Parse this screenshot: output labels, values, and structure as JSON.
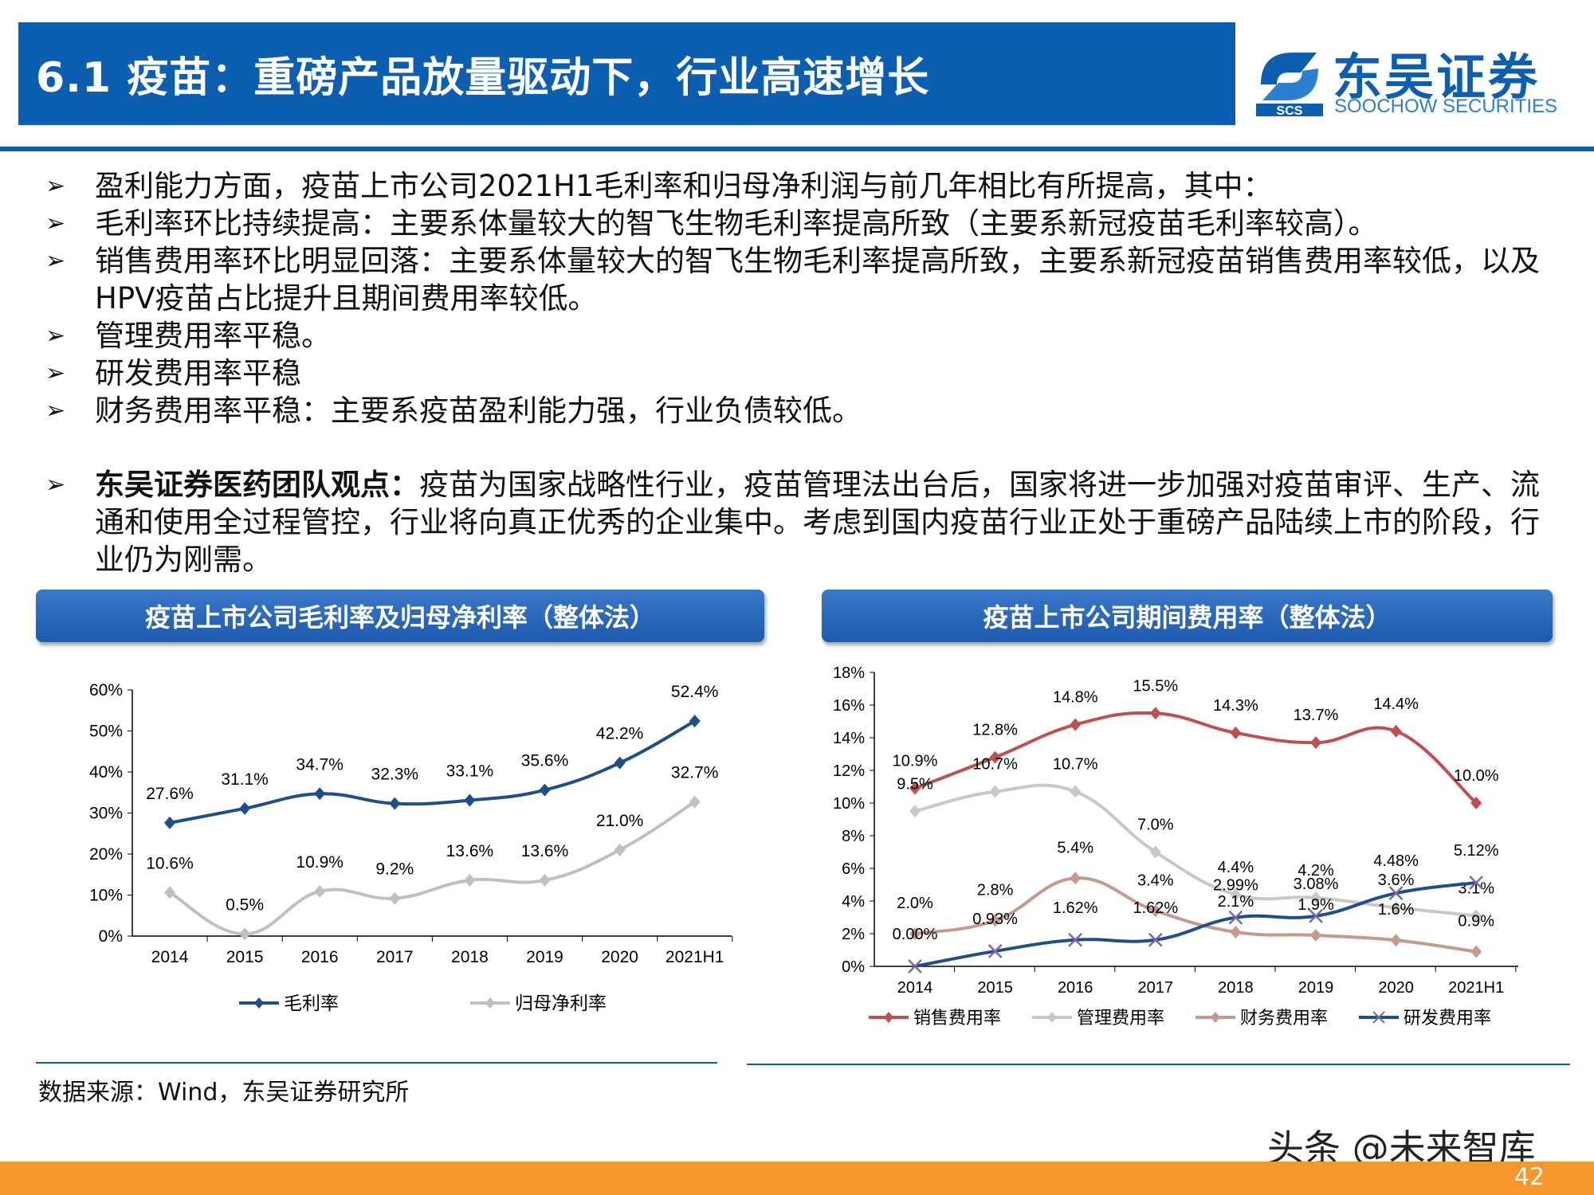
{
  "header": {
    "title": "6.1 疫苗：重磅产品放量驱动下，行业高速增长",
    "logo_cn": "东吴证券",
    "logo_en": "SOOCHOW SECURITIES",
    "logo_mark": "SCS"
  },
  "bullets": [
    "盈利能力方面，疫苗上市公司2021H1毛利率和归母净利润与前几年相比有所提高，其中：",
    "毛利率环比持续提高：主要系体量较大的智飞生物毛利率提高所致（主要系新冠疫苗毛利率较高）。",
    "销售费用率环比明显回落：主要系体量较大的智飞生物毛利率提高所致，主要系新冠疫苗销售费用率较低，以及HPV疫苗占比提升且期间费用率较低。",
    "管理费用率平稳。",
    "研发费用率平稳",
    "财务费用率平稳：主要系疫苗盈利能力强，行业负债较低。"
  ],
  "viewpoint": {
    "label": "东吴证券医药团队观点：",
    "text": "疫苗为国家战略性行业，疫苗管理法出台后，国家将进一步加强对疫苗审评、生产、流通和使用全过程管控，行业将向真正优秀的企业集中。考虑到国内疫苗行业正处于重磅产品陆续上市的阶段，行业仍为刚需。"
  },
  "bullet_glyph": "➢",
  "chart_data": [
    {
      "type": "line",
      "title": "疫苗上市公司毛利率及归母净利率（整体法）",
      "categories": [
        "2014",
        "2015",
        "2016",
        "2017",
        "2018",
        "2019",
        "2020",
        "2021H1"
      ],
      "ylim": [
        0,
        60
      ],
      "yticks": [
        "0%",
        "10%",
        "20%",
        "30%",
        "40%",
        "50%",
        "60%"
      ],
      "legend": "bottom",
      "series": [
        {
          "name": "毛利率",
          "color": "#1f4e8c",
          "marker": "diamond",
          "values": [
            27.6,
            31.1,
            34.7,
            32.3,
            33.1,
            35.6,
            42.2,
            52.4
          ],
          "labels": [
            "27.6%",
            "31.1%",
            "34.7%",
            "32.3%",
            "33.1%",
            "35.6%",
            "42.2%",
            "52.4%"
          ]
        },
        {
          "name": "归母净利率",
          "color": "#c0c0c0",
          "marker": "diamond",
          "values": [
            10.6,
            0.5,
            10.9,
            9.2,
            13.6,
            13.6,
            21.0,
            32.7
          ],
          "labels": [
            "10.6%",
            "0.5%",
            "10.9%",
            "9.2%",
            "13.6%",
            "13.6%",
            "21.0%",
            "32.7%"
          ]
        }
      ]
    },
    {
      "type": "line",
      "title": "疫苗上市公司期间费用率（整体法）",
      "categories": [
        "2014",
        "2015",
        "2016",
        "2017",
        "2018",
        "2019",
        "2020",
        "2021H1"
      ],
      "ylim": [
        0,
        18
      ],
      "yticks": [
        "0%",
        "2%",
        "4%",
        "6%",
        "8%",
        "10%",
        "12%",
        "14%",
        "16%",
        "18%"
      ],
      "legend": "bottom",
      "series": [
        {
          "name": "销售费用率",
          "color": "#c0504d",
          "marker": "diamond",
          "values": [
            10.9,
            12.8,
            14.8,
            15.5,
            14.3,
            13.7,
            14.4,
            10.0
          ],
          "labels": [
            "10.9%",
            "12.8%",
            "14.8%",
            "15.5%",
            "14.3%",
            "13.7%",
            "14.4%",
            "10.0%"
          ]
        },
        {
          "name": "管理费用率",
          "color": "#c8c8c8",
          "marker": "diamond",
          "values": [
            9.5,
            10.7,
            10.7,
            7.0,
            4.4,
            4.2,
            3.6,
            3.1
          ],
          "labels": [
            "9.5%",
            "10.7%",
            "10.7%",
            "7.0%",
            "4.4%",
            "4.2%",
            "3.6%",
            "3.1%"
          ]
        },
        {
          "name": "财务费用率",
          "color": "#c49a8f",
          "marker": "diamond",
          "values": [
            2.0,
            2.8,
            5.4,
            3.4,
            2.1,
            1.9,
            1.6,
            0.9
          ],
          "labels": [
            "2.0%",
            "2.8%",
            "5.4%",
            "3.4%",
            "2.1%",
            "1.9%",
            "1.6%",
            "0.9%"
          ]
        },
        {
          "name": "研发费用率",
          "color": "#1f4e8c",
          "marker": "x",
          "values": [
            0.0,
            0.93,
            1.62,
            1.62,
            2.99,
            3.08,
            4.48,
            5.12
          ],
          "labels": [
            "0.00%",
            "0.93%",
            "1.62%",
            "1.62%",
            "2.99%",
            "3.08%",
            "4.48%",
            "5.12%"
          ]
        }
      ]
    }
  ],
  "source": "数据来源：Wind，东吴证券研究所",
  "watermark": "头条 @未来智库",
  "page_number": "42",
  "colors": {
    "brand": "#0b5eb0",
    "footer": "#f7962a"
  }
}
